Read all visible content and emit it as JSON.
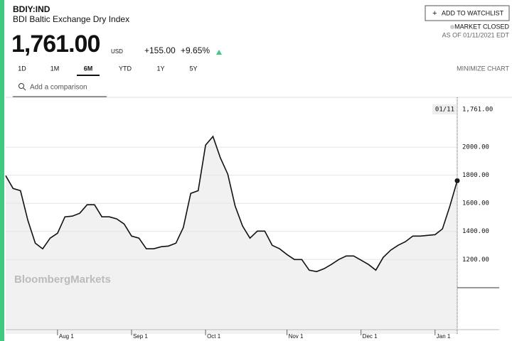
{
  "header": {
    "ticker": "BDIY:IND",
    "name": "BDI Baltic Exchange Dry Index",
    "price": "1,761.00",
    "currency": "USD",
    "change": "+155.00",
    "change_pct": "+9.65%",
    "watchlist": "ADD TO WATCHLIST",
    "market_status": "MARKET CLOSED",
    "as_of": "AS OF 01/11/2021 EDT",
    "tabs": [
      "1D",
      "1M",
      "6M",
      "YTD",
      "1Y",
      "5Y"
    ],
    "minimize": "MINIMIZE CHART",
    "comparison": "Add a comparison",
    "watermark": "BloombergMarkets"
  },
  "chart_data": {
    "type": "line",
    "color": "#111111",
    "area_color": "#f1f1f1",
    "categories": [
      null,
      null,
      null,
      null,
      null,
      null,
      null,
      "Aug 1",
      null,
      null,
      null,
      null,
      null,
      null,
      null,
      null,
      null,
      "Sep 1",
      null,
      null,
      null,
      null,
      null,
      null,
      null,
      null,
      null,
      "Oct 1",
      null,
      null,
      null,
      null,
      null,
      null,
      null,
      null,
      null,
      null,
      "Nov 1",
      null,
      null,
      null,
      null,
      null,
      null,
      null,
      null,
      null,
      "Dec 1",
      null,
      null,
      null,
      null,
      null,
      null,
      null,
      null,
      null,
      "Jan 1",
      null,
      null,
      null
    ],
    "values": [
      1797,
      1706,
      1690,
      1478,
      1316,
      1276,
      1352,
      1387,
      1504,
      1509,
      1529,
      1590,
      1590,
      1504,
      1504,
      1489,
      1453,
      1367,
      1352,
      1276,
      1276,
      1291,
      1296,
      1316,
      1428,
      1671,
      1690,
      2015,
      2076,
      1924,
      1808,
      1580,
      1438,
      1352,
      1402,
      1402,
      1301,
      1276,
      1235,
      1200,
      1200,
      1124,
      1114,
      1134,
      1165,
      1200,
      1225,
      1225,
      1195,
      1165,
      1124,
      1215,
      1266,
      1301,
      1327,
      1367,
      1367,
      1372,
      1377,
      1418,
      1580,
      1761
    ],
    "ylim": [
      670,
      2355
    ],
    "yticks": [
      {
        "value": 1200,
        "label": "1200.00"
      },
      {
        "value": 1400,
        "label": "1400.00"
      },
      {
        "value": 1600,
        "label": "1600.00"
      },
      {
        "value": 1800,
        "label": "1800.00"
      },
      {
        "value": 2000,
        "label": "2000.00"
      }
    ],
    "grid": true,
    "last_date": "01/11",
    "last_value_label": "1,761.00"
  }
}
